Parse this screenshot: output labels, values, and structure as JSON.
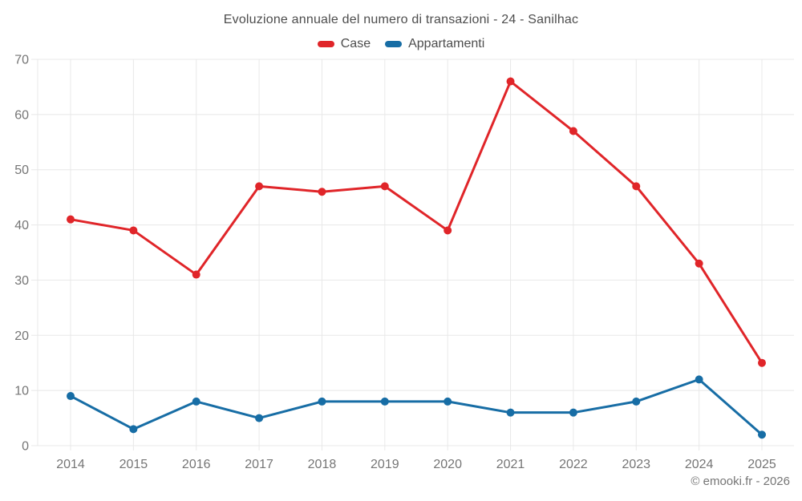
{
  "header": {
    "title": "Evoluzione annuale del numero di transazioni - 24 - Sanilhac"
  },
  "legend": {
    "items": [
      {
        "label": "Case",
        "color": "#e02529"
      },
      {
        "label": "Appartamenti",
        "color": "#176da5"
      }
    ]
  },
  "footer": {
    "credit": "© emooki.fr - 2026"
  },
  "colors": {
    "grid": "#e8e8e8",
    "axis_label": "#757575",
    "title_text": "#4d4d4d"
  },
  "chart_data": {
    "type": "line",
    "title": "Evoluzione annuale del numero di transazioni - 24 - Sanilhac",
    "categories": [
      "2014",
      "2015",
      "2016",
      "2017",
      "2018",
      "2019",
      "2020",
      "2021",
      "2022",
      "2023",
      "2024",
      "2025"
    ],
    "series": [
      {
        "name": "Case",
        "color": "#e02529",
        "values": [
          41,
          39,
          31,
          47,
          46,
          47,
          39,
          66,
          57,
          47,
          33,
          15
        ]
      },
      {
        "name": "Appartamenti",
        "color": "#176da5",
        "values": [
          9,
          3,
          8,
          5,
          8,
          8,
          8,
          6,
          6,
          8,
          12,
          2
        ]
      }
    ],
    "xlabel": "",
    "ylabel": "",
    "ylim": [
      0,
      70
    ],
    "yticks": [
      0,
      10,
      20,
      30,
      40,
      50,
      60,
      70
    ],
    "grid": true,
    "legend_position": "top",
    "marker": "circle",
    "annotation": "© emooki.fr - 2026"
  }
}
